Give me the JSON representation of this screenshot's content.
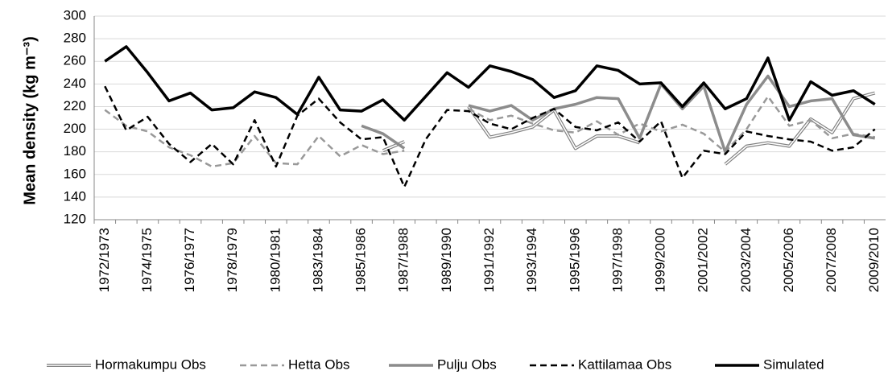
{
  "chart_data": {
    "type": "line",
    "y_label": "Mean density (kg m⁻³)",
    "categories": [
      "1972/1973",
      null,
      "1974/1975",
      null,
      "1976/1977",
      null,
      "1978/1979",
      null,
      "1980/1981",
      null,
      "1983/1984",
      null,
      "1985/1986",
      null,
      "1987/1988",
      null,
      "1989/1990",
      null,
      "1991/1992",
      null,
      "1993/1994",
      null,
      "1995/1996",
      null,
      "1997/1998",
      null,
      "1999/2000",
      null,
      "2001/2002",
      null,
      "2003/2004",
      null,
      "2005/2006",
      null,
      "2007/2008",
      null,
      "2009/2010"
    ],
    "ylim": [
      120,
      300
    ],
    "yticks": [
      120,
      140,
      160,
      180,
      200,
      220,
      240,
      260,
      280,
      300
    ],
    "grid": true,
    "legend": "bottom",
    "series": [
      {
        "name": "Hormakumpu Obs",
        "color": "#808080",
        "style": "double",
        "values": [
          null,
          null,
          null,
          null,
          null,
          null,
          null,
          null,
          null,
          null,
          null,
          null,
          null,
          181,
          189,
          null,
          null,
          220,
          193,
          197,
          202,
          217,
          183,
          194,
          194,
          188,
          null,
          null,
          null,
          169,
          185,
          188,
          185,
          209,
          197,
          227,
          232
        ]
      },
      {
        "name": "Hetta Obs",
        "color": "#999999",
        "style": "dashed",
        "values": [
          217,
          203,
          198,
          184,
          177,
          167,
          170,
          194,
          170,
          169,
          194,
          176,
          186,
          178,
          181,
          null,
          null,
          218,
          208,
          212,
          205,
          199,
          197,
          207,
          195,
          205,
          198,
          204,
          196,
          180,
          200,
          229,
          203,
          208,
          192,
          196,
          193
        ]
      },
      {
        "name": "Pulju Obs",
        "color": "#8c8c8c",
        "style": "solid-thick",
        "values": [
          null,
          null,
          null,
          null,
          null,
          null,
          null,
          null,
          null,
          null,
          null,
          null,
          203,
          196,
          183,
          null,
          null,
          221,
          216,
          221,
          208,
          218,
          222,
          228,
          227,
          192,
          240,
          218,
          238,
          180,
          222,
          247,
          220,
          225,
          227,
          195,
          192
        ]
      },
      {
        "name": "Kattilamaa Obs",
        "color": "#000000",
        "style": "dashed",
        "values": [
          238,
          199,
          211,
          187,
          171,
          187,
          169,
          208,
          167,
          212,
          227,
          206,
          191,
          193,
          149,
          191,
          217,
          216,
          205,
          200,
          210,
          218,
          202,
          199,
          206,
          189,
          207,
          157,
          181,
          178,
          198,
          194,
          191,
          189,
          181,
          184,
          200
        ]
      },
      {
        "name": "Simulated",
        "color": "#000000",
        "style": "solid-thick",
        "values": [
          260,
          273,
          250,
          225,
          232,
          217,
          219,
          233,
          228,
          213,
          246,
          217,
          216,
          226,
          208,
          229,
          250,
          237,
          256,
          251,
          244,
          228,
          234,
          256,
          252,
          240,
          241,
          220,
          241,
          218,
          227,
          263,
          208,
          242,
          230,
          234,
          222
        ]
      }
    ]
  }
}
